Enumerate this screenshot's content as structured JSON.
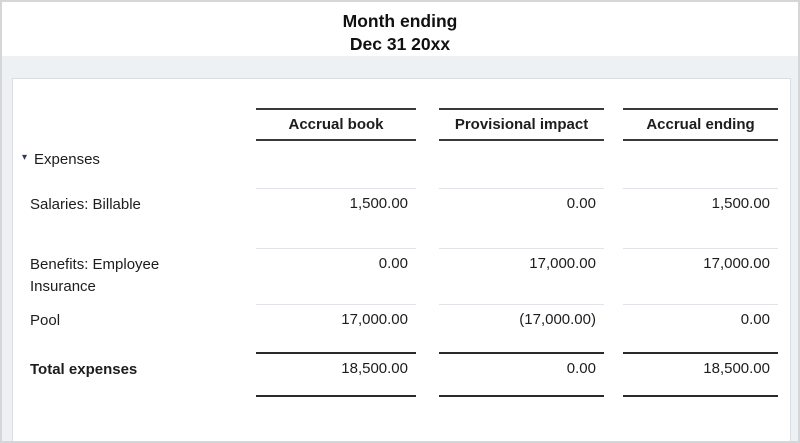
{
  "report_header": {
    "title_line1": "Month ending",
    "title_line2": "Dec 31 20xx"
  },
  "table": {
    "column_headers": [
      "Accrual book",
      "Provisional impact",
      "Accrual ending"
    ],
    "group_row": {
      "collapse_icon": "▾",
      "label": "Expenses"
    },
    "rows": [
      {
        "label": "Salaries: Billable",
        "accrual_book": "1,500.00",
        "provisional_impact": "0.00",
        "accrual_ending": "1,500.00"
      },
      {
        "label": "Benefits: Employee Insurance",
        "accrual_book": "0.00",
        "provisional_impact": "17,000.00",
        "accrual_ending": "17,000.00"
      },
      {
        "label": "Pool",
        "accrual_book": "17,000.00",
        "provisional_impact": "(17,000.00)",
        "accrual_ending": "0.00"
      }
    ],
    "total_row": {
      "label": "Total expenses",
      "accrual_book": "18,500.00",
      "provisional_impact": "0.00",
      "accrual_ending": "18,500.00"
    }
  },
  "colors": {
    "canvas_background": "#eef1f4",
    "card_border": "#d9dee3",
    "heavy_rule": "#2e2e2e",
    "light_rule": "#e0e4e8",
    "text": "#1d1d1d",
    "collapse_icon": "#2e3a59"
  }
}
